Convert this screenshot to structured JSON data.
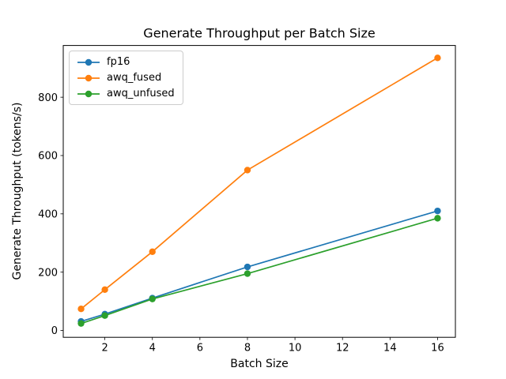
{
  "chart_data": {
    "type": "line",
    "title": "Generate Throughput per Batch Size",
    "xlabel": "Batch Size",
    "ylabel": "Generate Throughput (tokens/s)",
    "x": [
      1,
      2,
      4,
      8,
      16
    ],
    "series": [
      {
        "name": "fp16",
        "color": "#1f77b4",
        "values": [
          31,
          56,
          111,
          218,
          410
        ]
      },
      {
        "name": "awq_fused",
        "color": "#ff7f0e",
        "values": [
          74,
          140,
          270,
          550,
          935
        ]
      },
      {
        "name": "awq_unfused",
        "color": "#2ca02c",
        "values": [
          24,
          51,
          108,
          195,
          385
        ]
      }
    ],
    "xlim": [
      0.25,
      16.75
    ],
    "ylim": [
      -23.5,
      977.5
    ],
    "xticks": [
      2,
      4,
      6,
      8,
      10,
      12,
      14,
      16
    ],
    "yticks": [
      0,
      200,
      400,
      600,
      800
    ],
    "legend_position": "upper left",
    "grid": false,
    "marker": "o",
    "colors": {
      "axes": "#000000",
      "text": "#000000",
      "legend_border": "#cccccc",
      "background": "#ffffff"
    }
  }
}
